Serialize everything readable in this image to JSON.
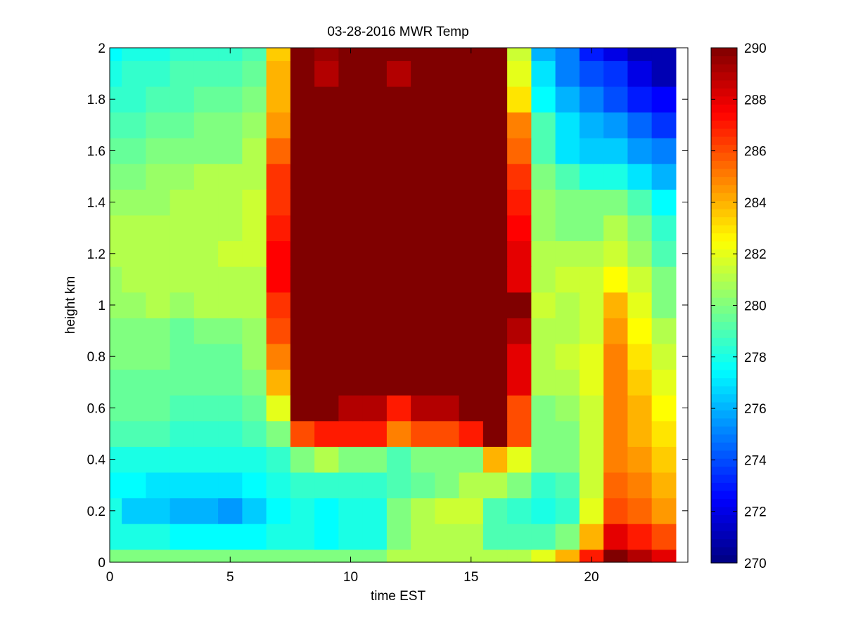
{
  "chart_data": {
    "type": "heatmap",
    "title": "03-28-2016 MWR Temp",
    "xlabel": "time EST",
    "ylabel": "height km",
    "xlim": [
      0,
      24
    ],
    "ylim": [
      0,
      2
    ],
    "xticks": [
      0,
      5,
      10,
      15,
      20
    ],
    "yticks": [
      0,
      0.2,
      0.4,
      0.6,
      0.8,
      1,
      1.2,
      1.4,
      1.6,
      1.8,
      2
    ],
    "x": [
      0,
      1,
      2,
      3,
      4,
      5,
      6,
      7,
      8,
      9,
      10,
      11,
      12,
      13,
      14,
      15,
      16,
      17,
      18,
      19,
      20,
      21,
      22,
      23
    ],
    "y": [
      0,
      0.1,
      0.2,
      0.3,
      0.4,
      0.5,
      0.6,
      0.7,
      0.8,
      0.9,
      1,
      1.1,
      1.2,
      1.3,
      1.4,
      1.5,
      1.6,
      1.7,
      1.8,
      1.9,
      2
    ],
    "colormap": "jet",
    "colorbar": {
      "min": 270,
      "max": 290,
      "ticks": [
        270,
        272,
        274,
        276,
        278,
        280,
        282,
        284,
        286,
        288,
        290
      ]
    },
    "values": [
      [
        280,
        280,
        280,
        280,
        280,
        280,
        280,
        280,
        280,
        280,
        280,
        280,
        281,
        281,
        281,
        281,
        281,
        281,
        282,
        284,
        287,
        290,
        289,
        288
      ],
      [
        278,
        278,
        278,
        277.5,
        277.5,
        277.5,
        277.5,
        278,
        278,
        277.5,
        278,
        278,
        280,
        281,
        281,
        281,
        279,
        279,
        279,
        280,
        284,
        288,
        287,
        286
      ],
      [
        278,
        276.5,
        276.5,
        276,
        276,
        275.5,
        276.5,
        277.5,
        278,
        277.5,
        278,
        278,
        280,
        281,
        281.5,
        281.5,
        279,
        278.5,
        278,
        278.5,
        282,
        286,
        285.5,
        284.5
      ],
      [
        277.5,
        277.5,
        277,
        277,
        277,
        277,
        277.5,
        278,
        278.5,
        278.5,
        278.5,
        278.5,
        279,
        279.5,
        280,
        281,
        281,
        280,
        278.5,
        279,
        281.5,
        285.5,
        285,
        284
      ],
      [
        278,
        278,
        278,
        278,
        278,
        278,
        278,
        278.5,
        280,
        281,
        280,
        280,
        279,
        280,
        280,
        280,
        284,
        282,
        280,
        280,
        281.5,
        285,
        284.5,
        283.5
      ],
      [
        279,
        279,
        279,
        278.5,
        278.5,
        278.5,
        279,
        280,
        286,
        287,
        287,
        287,
        285,
        286,
        286,
        287,
        290,
        286,
        280,
        280,
        281.5,
        285,
        284,
        283
      ],
      [
        279.5,
        279.5,
        279.5,
        279,
        279,
        279,
        279.5,
        282,
        290,
        290,
        289,
        289,
        287,
        289,
        289,
        290,
        290,
        286,
        280,
        280.5,
        281.5,
        285,
        284,
        282.5
      ],
      [
        279.5,
        279.5,
        279.5,
        279.5,
        279.5,
        279.5,
        280,
        284,
        290,
        290,
        290,
        290,
        290,
        290,
        290,
        290,
        290,
        288,
        281,
        281,
        282,
        285,
        283.5,
        282
      ],
      [
        280,
        280,
        280,
        279.5,
        279.5,
        279.5,
        280.5,
        285,
        290,
        290,
        290,
        290,
        290,
        290,
        290,
        290,
        290,
        288,
        281,
        281.5,
        282,
        285,
        283,
        281.5
      ],
      [
        280,
        280,
        280,
        279.5,
        280,
        280,
        280.5,
        286,
        290,
        290,
        290,
        290,
        290,
        290,
        290,
        290,
        290,
        289,
        281,
        281,
        281.5,
        284.5,
        282.5,
        281
      ],
      [
        280.5,
        280.5,
        281,
        280.5,
        281,
        281,
        281,
        286.5,
        290,
        290,
        290,
        290,
        290,
        290,
        290,
        290,
        290,
        290,
        281.5,
        281,
        281.5,
        284,
        282,
        280
      ],
      [
        280.5,
        281,
        281,
        281,
        281,
        281,
        281,
        287.5,
        290,
        290,
        290,
        290,
        290,
        290,
        290,
        290,
        290,
        288,
        281,
        281.5,
        281.5,
        282.5,
        281.5,
        280
      ],
      [
        281,
        281,
        281,
        281,
        281,
        281.5,
        281.5,
        287.5,
        290,
        290,
        290,
        290,
        290,
        290,
        290,
        290,
        290,
        288,
        281,
        281,
        281,
        281.5,
        280.5,
        279
      ],
      [
        281,
        281,
        281,
        281,
        281,
        281,
        281.5,
        287,
        290,
        290,
        290,
        290,
        290,
        290,
        290,
        290,
        290,
        287.5,
        280.5,
        280,
        280,
        281,
        280,
        278.5
      ],
      [
        280.5,
        280.5,
        280.5,
        281,
        281,
        281,
        281.5,
        286.5,
        290,
        290,
        290,
        290,
        290,
        290,
        290,
        290,
        290,
        287,
        280.5,
        280,
        280,
        280,
        279,
        277.5
      ],
      [
        280,
        280,
        280.5,
        280.5,
        281,
        281,
        281,
        286.5,
        290,
        290,
        290,
        290,
        290,
        290,
        290,
        290,
        290,
        286.5,
        280,
        279,
        278,
        278,
        277,
        276
      ],
      [
        279.5,
        279.5,
        280,
        280,
        280,
        280,
        281,
        285.5,
        290,
        290,
        290,
        290,
        290,
        290,
        290,
        290,
        290,
        285.5,
        279,
        277,
        276.5,
        276.5,
        275.5,
        275
      ],
      [
        279,
        279,
        279.5,
        279.5,
        280,
        280,
        280.5,
        284.5,
        290,
        290,
        290,
        290,
        290,
        290,
        290,
        290,
        290,
        285,
        279,
        277,
        276,
        275.5,
        274.5,
        273.5
      ],
      [
        278.5,
        278.5,
        279,
        279,
        279.5,
        279.5,
        280,
        284,
        290,
        290,
        290,
        290,
        290,
        290,
        290,
        290,
        290,
        283,
        277.5,
        276,
        275,
        274,
        273,
        272.5
      ],
      [
        278,
        278.5,
        278.5,
        279,
        279,
        279,
        279.5,
        284,
        290,
        289,
        290,
        290,
        289,
        290,
        290,
        290,
        290,
        282,
        277,
        275,
        274,
        273.5,
        272,
        271
      ],
      [
        277.5,
        278,
        278,
        278.5,
        278.5,
        278.5,
        279,
        283.5,
        290,
        289.5,
        290,
        290,
        290,
        290,
        290,
        290,
        290,
        281.5,
        276,
        275,
        273,
        272,
        271,
        271
      ]
    ]
  }
}
